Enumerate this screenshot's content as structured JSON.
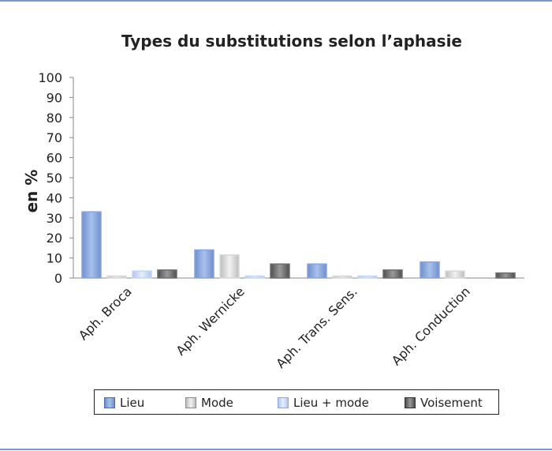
{
  "chart_data": {
    "type": "bar",
    "title": "Types du substitutions selon l’aphasie",
    "ylabel": "en %",
    "xlabel": "",
    "ylim": [
      0,
      100
    ],
    "yticks": [
      0,
      10,
      20,
      30,
      40,
      50,
      60,
      70,
      80,
      90,
      100
    ],
    "categories": [
      "Aph. Broca",
      "Aph. Wernicke",
      "Aph. Trans. Sens.",
      "Aph. Conduction"
    ],
    "series": [
      {
        "name": "Lieu",
        "values": [
          33,
          14,
          7,
          8
        ],
        "color": "#8ba4d8"
      },
      {
        "name": "Mode",
        "values": [
          1,
          11.5,
          1,
          3.5
        ],
        "color": "#d8d8d8"
      },
      {
        "name": "Lieu + mode",
        "values": [
          3.5,
          1,
          1,
          0
        ],
        "color": "#c6d6f3"
      },
      {
        "name": "Voisement",
        "values": [
          4,
          7,
          4,
          2.5
        ],
        "color": "#6f6f6f"
      }
    ],
    "grid": false,
    "legend_position": "bottom"
  }
}
